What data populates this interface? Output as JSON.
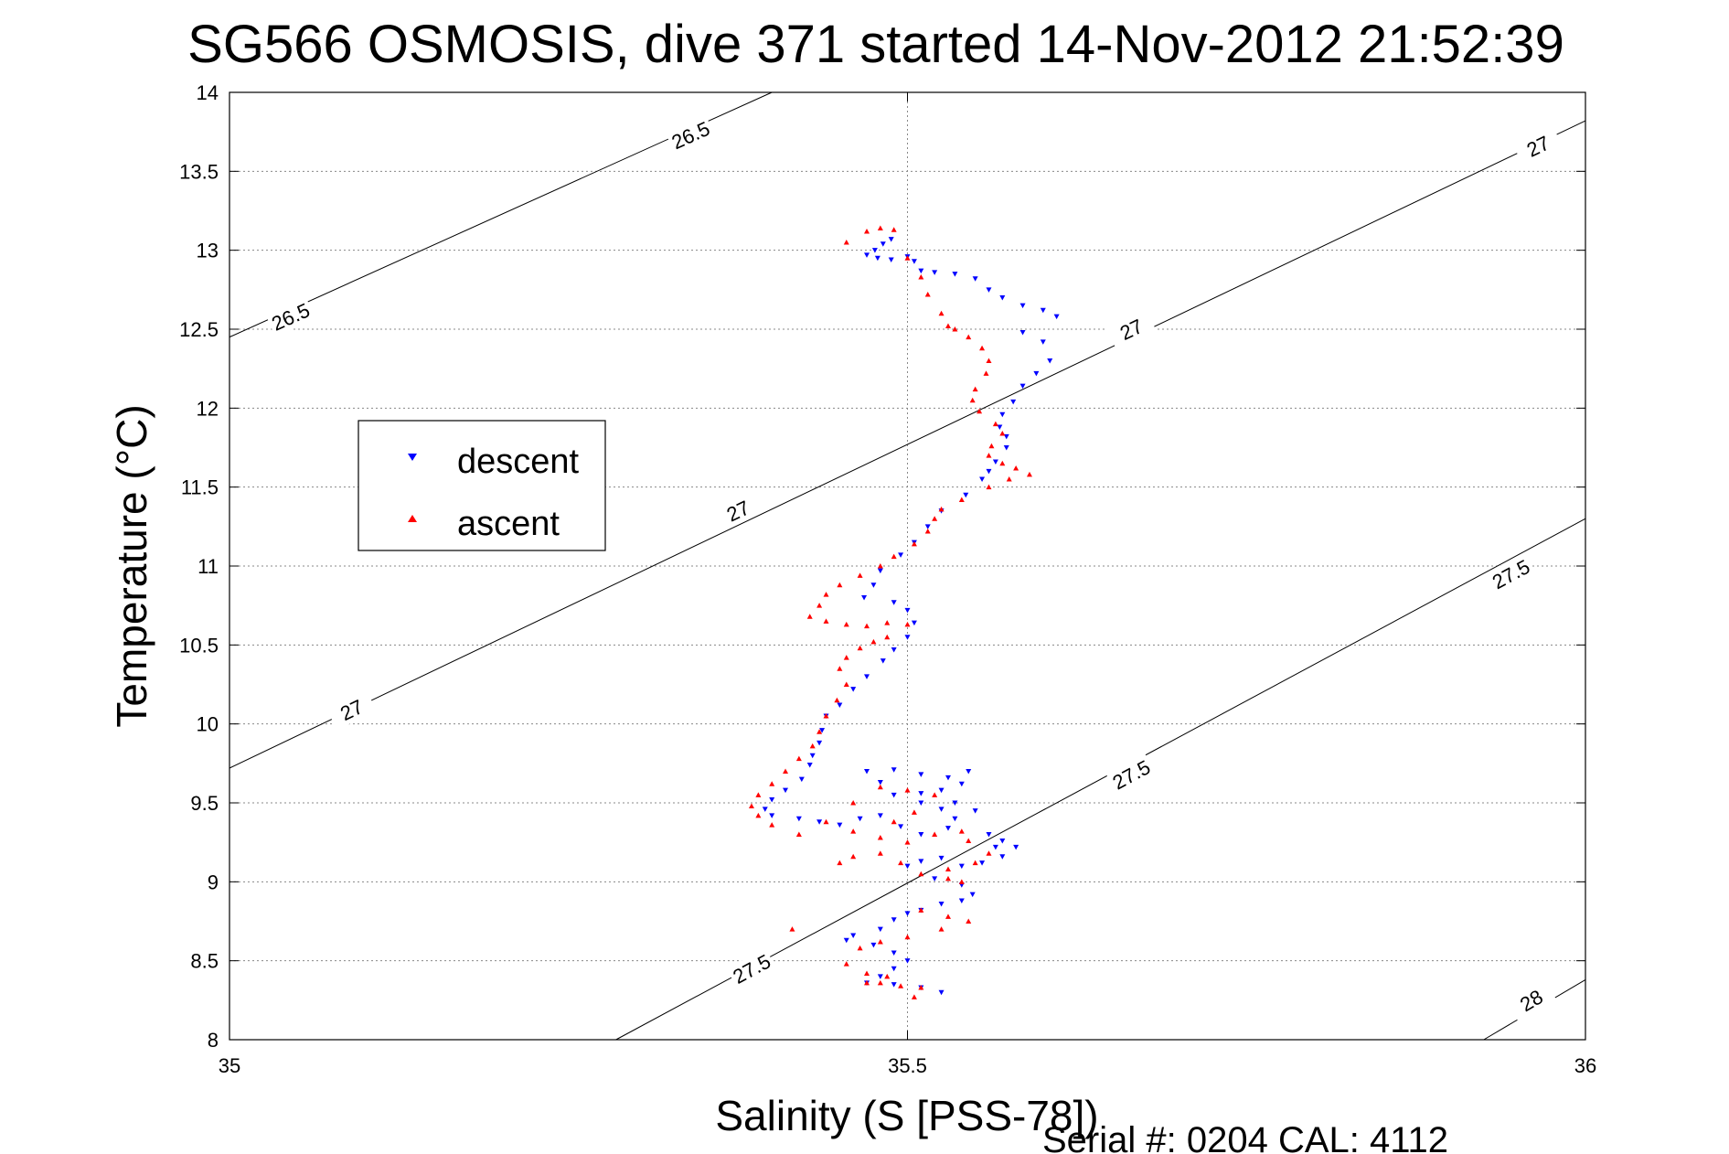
{
  "chart_data": {
    "type": "scatter",
    "title": "SG566 OSMOSIS, dive 371 started 14-Nov-2012 21:52:39",
    "xlabel": "Salinity (S [PSS-78])",
    "ylabel": "Temperature (°C)",
    "xlim": [
      35,
      36
    ],
    "ylim": [
      8,
      14
    ],
    "xticks": [
      "35",
      "35.5",
      "36"
    ],
    "yticks": [
      "8",
      "8.5",
      "9",
      "9.5",
      "10",
      "10.5",
      "11",
      "11.5",
      "12",
      "12.5",
      "13",
      "13.5",
      "14"
    ],
    "grid": true,
    "legend_position": "left",
    "footer": "Serial #: 0204  CAL: 4112",
    "isopycnals": [
      {
        "label": "26.5",
        "points": [
          [
            35.0,
            12.45
          ],
          [
            35.4,
            14.0
          ]
        ],
        "labels_at": [
          [
            35.045,
            12.58
          ],
          [
            35.34,
            13.73
          ]
        ]
      },
      {
        "label": "27",
        "points": [
          [
            35.0,
            9.72
          ],
          [
            36.0,
            13.82
          ]
        ],
        "labels_at": [
          [
            35.09,
            10.09
          ],
          [
            35.375,
            11.35
          ],
          [
            35.665,
            12.5
          ],
          [
            35.965,
            13.66
          ]
        ]
      },
      {
        "label": "27.5",
        "points": [
          [
            35.285,
            8.0
          ],
          [
            36.0,
            11.3
          ]
        ],
        "labels_at": [
          [
            35.385,
            8.45
          ],
          [
            35.665,
            9.68
          ],
          [
            35.945,
            10.95
          ]
        ]
      },
      {
        "label": "28",
        "points": [
          [
            35.925,
            8.0
          ],
          [
            36.0,
            8.38
          ]
        ],
        "labels_at": [
          [
            35.96,
            8.25
          ]
        ]
      }
    ],
    "series": [
      {
        "name": "descent",
        "color": "#0000ff",
        "marker": "triangle-down",
        "points": [
          [
            35.488,
            13.07
          ],
          [
            35.482,
            13.04
          ],
          [
            35.476,
            13.0
          ],
          [
            35.47,
            12.97
          ],
          [
            35.478,
            12.95
          ],
          [
            35.488,
            12.94
          ],
          [
            35.5,
            12.96
          ],
          [
            35.505,
            12.93
          ],
          [
            35.51,
            12.87
          ],
          [
            35.52,
            12.86
          ],
          [
            35.535,
            12.85
          ],
          [
            35.55,
            12.82
          ],
          [
            35.56,
            12.75
          ],
          [
            35.57,
            12.7
          ],
          [
            35.585,
            12.65
          ],
          [
            35.6,
            12.62
          ],
          [
            35.61,
            12.58
          ],
          [
            35.585,
            12.48
          ],
          [
            35.6,
            12.42
          ],
          [
            35.605,
            12.3
          ],
          [
            35.595,
            12.22
          ],
          [
            35.585,
            12.14
          ],
          [
            35.578,
            12.04
          ],
          [
            35.57,
            11.96
          ],
          [
            35.568,
            11.88
          ],
          [
            35.573,
            11.82
          ],
          [
            35.573,
            11.75
          ],
          [
            35.565,
            11.66
          ],
          [
            35.56,
            11.6
          ],
          [
            35.555,
            11.55
          ],
          [
            35.543,
            11.45
          ],
          [
            35.525,
            11.35
          ],
          [
            35.515,
            11.25
          ],
          [
            35.505,
            11.15
          ],
          [
            35.495,
            11.07
          ],
          [
            35.48,
            10.97
          ],
          [
            35.475,
            10.88
          ],
          [
            35.468,
            10.8
          ],
          [
            35.49,
            10.77
          ],
          [
            35.5,
            10.72
          ],
          [
            35.505,
            10.64
          ],
          [
            35.5,
            10.55
          ],
          [
            35.49,
            10.47
          ],
          [
            35.482,
            10.4
          ],
          [
            35.47,
            10.3
          ],
          [
            35.46,
            10.22
          ],
          [
            35.45,
            10.12
          ],
          [
            35.44,
            10.05
          ],
          [
            35.437,
            9.96
          ],
          [
            35.435,
            9.88
          ],
          [
            35.43,
            9.8
          ],
          [
            35.428,
            9.74
          ],
          [
            35.422,
            9.65
          ],
          [
            35.41,
            9.58
          ],
          [
            35.4,
            9.52
          ],
          [
            35.395,
            9.46
          ],
          [
            35.4,
            9.42
          ],
          [
            35.42,
            9.4
          ],
          [
            35.435,
            9.38
          ],
          [
            35.45,
            9.36
          ],
          [
            35.465,
            9.4
          ],
          [
            35.48,
            9.42
          ],
          [
            35.495,
            9.35
          ],
          [
            35.51,
            9.3
          ],
          [
            35.53,
            9.34
          ],
          [
            35.535,
            9.4
          ],
          [
            35.525,
            9.46
          ],
          [
            35.51,
            9.5
          ],
          [
            35.49,
            9.55
          ],
          [
            35.48,
            9.63
          ],
          [
            35.47,
            9.7
          ],
          [
            35.49,
            9.71
          ],
          [
            35.51,
            9.68
          ],
          [
            35.53,
            9.66
          ],
          [
            35.545,
            9.7
          ],
          [
            35.54,
            9.62
          ],
          [
            35.525,
            9.58
          ],
          [
            35.51,
            9.56
          ],
          [
            35.535,
            9.5
          ],
          [
            35.55,
            9.45
          ],
          [
            35.56,
            9.3
          ],
          [
            35.565,
            9.22
          ],
          [
            35.57,
            9.26
          ],
          [
            35.58,
            9.22
          ],
          [
            35.57,
            9.16
          ],
          [
            35.555,
            9.12
          ],
          [
            35.54,
            9.1
          ],
          [
            35.525,
            9.15
          ],
          [
            35.51,
            9.13
          ],
          [
            35.5,
            9.1
          ],
          [
            35.52,
            9.02
          ],
          [
            35.54,
            8.98
          ],
          [
            35.548,
            8.92
          ],
          [
            35.54,
            8.88
          ],
          [
            35.525,
            8.86
          ],
          [
            35.51,
            8.82
          ],
          [
            35.5,
            8.8
          ],
          [
            35.49,
            8.76
          ],
          [
            35.48,
            8.7
          ],
          [
            35.46,
            8.66
          ],
          [
            35.455,
            8.63
          ],
          [
            35.475,
            8.6
          ],
          [
            35.49,
            8.55
          ],
          [
            35.5,
            8.5
          ],
          [
            35.49,
            8.45
          ],
          [
            35.48,
            8.4
          ],
          [
            35.47,
            8.36
          ],
          [
            35.49,
            8.35
          ],
          [
            35.51,
            8.33
          ],
          [
            35.525,
            8.3
          ]
        ]
      },
      {
        "name": "ascent",
        "color": "#ff0000",
        "marker": "triangle-up",
        "points": [
          [
            35.47,
            13.12
          ],
          [
            35.48,
            13.14
          ],
          [
            35.49,
            13.13
          ],
          [
            35.455,
            13.05
          ],
          [
            35.5,
            12.95
          ],
          [
            35.51,
            12.83
          ],
          [
            35.515,
            12.72
          ],
          [
            35.525,
            12.6
          ],
          [
            35.53,
            12.52
          ],
          [
            35.535,
            12.5
          ],
          [
            35.545,
            12.45
          ],
          [
            35.555,
            12.38
          ],
          [
            35.56,
            12.3
          ],
          [
            35.558,
            12.22
          ],
          [
            35.55,
            12.12
          ],
          [
            35.548,
            12.05
          ],
          [
            35.553,
            11.98
          ],
          [
            35.565,
            11.9
          ],
          [
            35.57,
            11.84
          ],
          [
            35.562,
            11.76
          ],
          [
            35.56,
            11.7
          ],
          [
            35.57,
            11.65
          ],
          [
            35.58,
            11.62
          ],
          [
            35.59,
            11.58
          ],
          [
            35.575,
            11.55
          ],
          [
            35.56,
            11.5
          ],
          [
            35.54,
            11.42
          ],
          [
            35.525,
            11.36
          ],
          [
            35.52,
            11.3
          ],
          [
            35.515,
            11.22
          ],
          [
            35.505,
            11.14
          ],
          [
            35.49,
            11.06
          ],
          [
            35.48,
            11.0
          ],
          [
            35.465,
            10.94
          ],
          [
            35.45,
            10.88
          ],
          [
            35.44,
            10.82
          ],
          [
            35.435,
            10.75
          ],
          [
            35.428,
            10.68
          ],
          [
            35.44,
            10.65
          ],
          [
            35.455,
            10.63
          ],
          [
            35.47,
            10.62
          ],
          [
            35.485,
            10.64
          ],
          [
            35.5,
            10.63
          ],
          [
            35.485,
            10.55
          ],
          [
            35.475,
            10.52
          ],
          [
            35.465,
            10.48
          ],
          [
            35.455,
            10.42
          ],
          [
            35.45,
            10.35
          ],
          [
            35.455,
            10.25
          ],
          [
            35.448,
            10.15
          ],
          [
            35.44,
            10.05
          ],
          [
            35.435,
            9.95
          ],
          [
            35.43,
            9.86
          ],
          [
            35.42,
            9.78
          ],
          [
            35.41,
            9.7
          ],
          [
            35.4,
            9.62
          ],
          [
            35.39,
            9.55
          ],
          [
            35.385,
            9.48
          ],
          [
            35.39,
            9.42
          ],
          [
            35.4,
            9.36
          ],
          [
            35.42,
            9.3
          ],
          [
            35.44,
            9.38
          ],
          [
            35.46,
            9.32
          ],
          [
            35.48,
            9.28
          ],
          [
            35.5,
            9.25
          ],
          [
            35.52,
            9.3
          ],
          [
            35.54,
            9.32
          ],
          [
            35.545,
            9.26
          ],
          [
            35.56,
            9.18
          ],
          [
            35.55,
            9.12
          ],
          [
            35.53,
            9.08
          ],
          [
            35.51,
            9.05
          ],
          [
            35.495,
            9.12
          ],
          [
            35.48,
            9.18
          ],
          [
            35.46,
            9.16
          ],
          [
            35.45,
            9.12
          ],
          [
            35.46,
            9.5
          ],
          [
            35.48,
            9.6
          ],
          [
            35.5,
            9.58
          ],
          [
            35.52,
            9.55
          ],
          [
            35.505,
            9.44
          ],
          [
            35.49,
            9.38
          ],
          [
            35.51,
            8.82
          ],
          [
            35.53,
            8.78
          ],
          [
            35.545,
            8.75
          ],
          [
            35.525,
            8.7
          ],
          [
            35.5,
            8.65
          ],
          [
            35.48,
            8.62
          ],
          [
            35.465,
            8.58
          ],
          [
            35.455,
            8.48
          ],
          [
            35.47,
            8.42
          ],
          [
            35.48,
            8.36
          ],
          [
            35.495,
            8.34
          ],
          [
            35.51,
            8.33
          ],
          [
            35.505,
            8.27
          ],
          [
            35.415,
            8.7
          ],
          [
            35.53,
            9.02
          ],
          [
            35.54,
            9.0
          ],
          [
            35.47,
            8.36
          ],
          [
            35.485,
            8.4
          ]
        ]
      }
    ]
  }
}
